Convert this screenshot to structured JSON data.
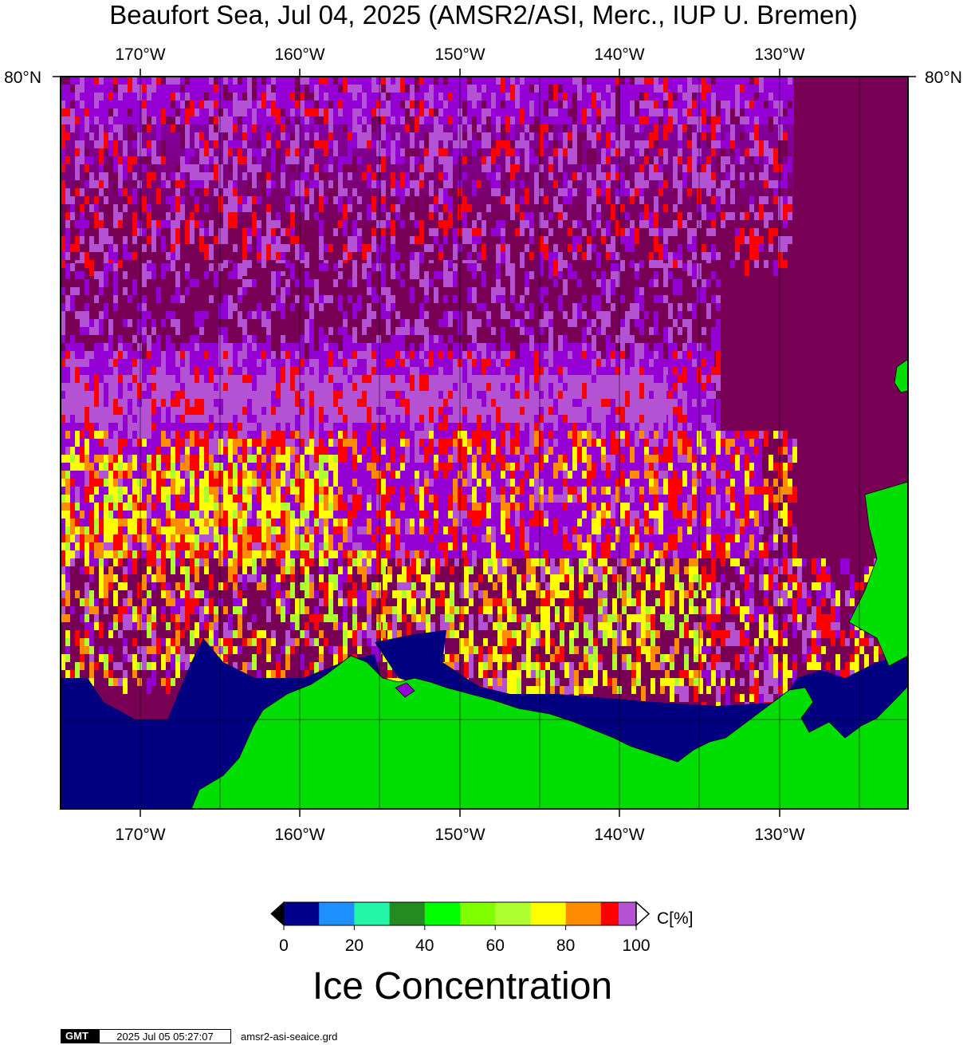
{
  "title": "Beaufort Sea, Jul 04, 2025 (AMSR2/ASI, Merc., IUP U. Bremen)",
  "axes": {
    "lon_ticks": [
      "170°W",
      "160°W",
      "150°W",
      "140°W",
      "130°W"
    ],
    "lat_tick": "80°N"
  },
  "colorbar": {
    "unit_label": "C[%]",
    "tick_labels": [
      "0",
      "20",
      "40",
      "60",
      "80",
      "100"
    ],
    "colors": [
      "#00008b",
      "#1e90ff",
      "#22f5a8",
      "#228b22",
      "#00ff00",
      "#7fff00",
      "#adff2f",
      "#ffff00",
      "#ff8c00",
      "#ff0000",
      "#b452d4",
      "#9400d3"
    ],
    "bins": [
      0,
      10,
      20,
      30,
      40,
      50,
      60,
      70,
      80,
      90,
      95,
      100
    ],
    "over_color": "#ffffff",
    "under_color": "#000000"
  },
  "quantity_label": "Ice Concentration",
  "footer": {
    "logo": "GMT",
    "timestamp": "2025 Jul 05 05:27:07",
    "filename": "amsr2-asi-seaice.grd"
  },
  "colors": {
    "land": "#00dd00",
    "ocean_open": "#000080",
    "ice_full": "#770055"
  }
}
